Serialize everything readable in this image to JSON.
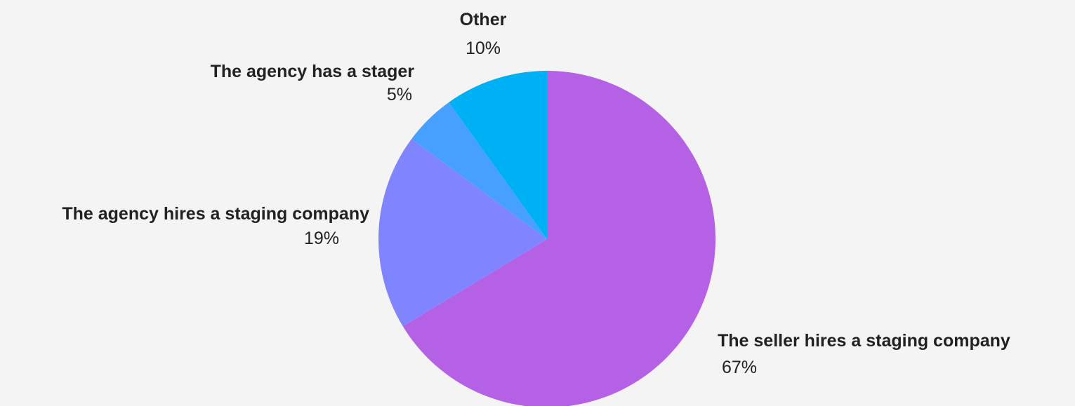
{
  "chart_data": {
    "type": "pie",
    "title": "",
    "start_angle_deg": 0,
    "direction": "clockwise",
    "slices": [
      {
        "name": "The seller hires a staging company",
        "value": 67,
        "value_label": "67%",
        "color": "#b561e6"
      },
      {
        "name": "The agency hires a staging company",
        "value": 19,
        "value_label": "19%",
        "color": "#8084ff"
      },
      {
        "name": "The agency has a stager",
        "value": 5,
        "value_label": "5%",
        "color": "#479fff"
      },
      {
        "name": "Other",
        "value": 10,
        "value_label": "10%",
        "color": "#00b0f5"
      }
    ],
    "background_color": "#f4f4f4",
    "label_color": "#222222"
  }
}
